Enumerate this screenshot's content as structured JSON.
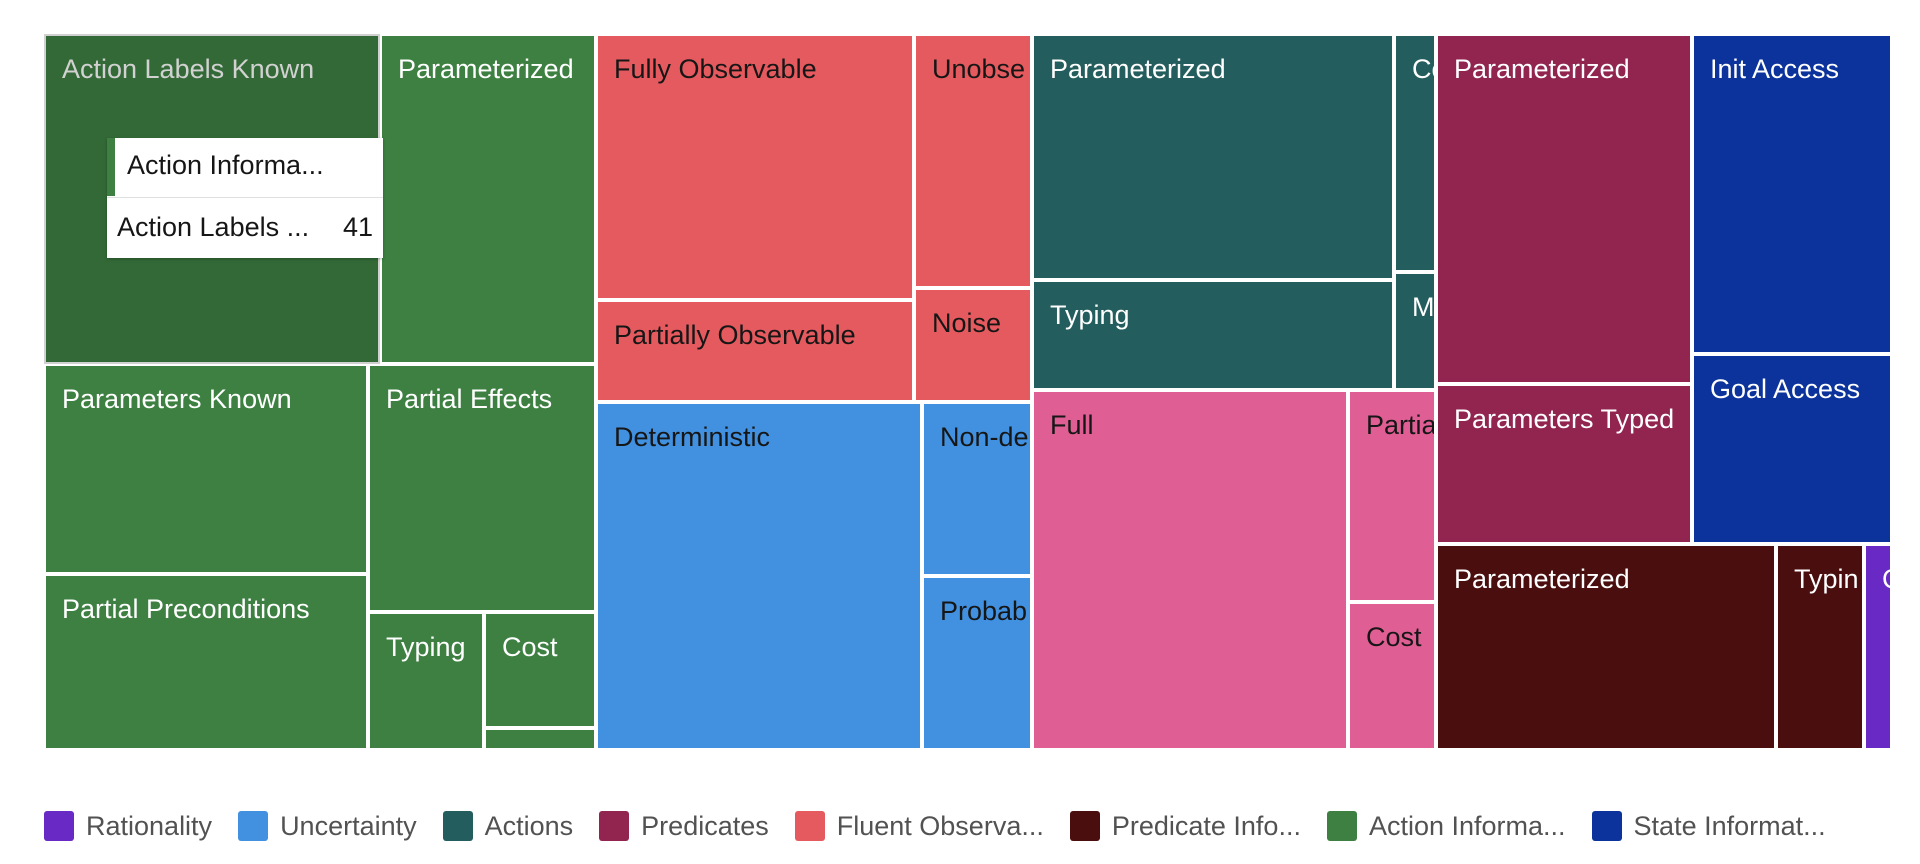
{
  "chart_data": {
    "type": "treemap",
    "colors": {
      "Rationality": "#6929c4",
      "Uncertainty": "#4191e0",
      "Actions": "#245d5d",
      "Predicates": "#912550",
      "Fluent Observability": "#e55a5e",
      "Predicate Information": "#4a0e0f",
      "Action Information": "#3d8042",
      "State Information": "#0c339b",
      "Pink": "#df5e94"
    },
    "groups": [
      {
        "name": "Action Information",
        "legend_label": "Action Informa...",
        "color_key": "Action Information",
        "children": [
          {
            "name": "Action Labels Known",
            "value": 41,
            "highlight": true
          },
          {
            "name": "Parameterized",
            "value": 22
          },
          {
            "name": "Parameters Known",
            "value": 21
          },
          {
            "name": "Partial Effects",
            "value": 17
          },
          {
            "name": "Partial Preconditions",
            "value": 17
          },
          {
            "name": "Typing",
            "value": 6
          },
          {
            "name": "Cost",
            "value": 6
          },
          {
            "name": "",
            "value": 1
          }
        ]
      },
      {
        "name": "Fluent Observability",
        "legend_label": "Fluent Observa...",
        "color_key": "Fluent Observability",
        "children": [
          {
            "name": "Fully Observable",
            "value": 22
          },
          {
            "name": "Unobse",
            "value": 8
          },
          {
            "name": "Partially Observable",
            "value": 8
          },
          {
            "name": "Noise",
            "value": 4
          }
        ]
      },
      {
        "name": "Uncertainty",
        "legend_label": "Uncertainty",
        "color_key": "Uncertainty",
        "children": [
          {
            "name": "Deterministic",
            "value": 45
          },
          {
            "name": "Non-de",
            "value": 8
          },
          {
            "name": "Probab",
            "value": 8
          }
        ]
      },
      {
        "name": "Actions",
        "legend_label": "Actions",
        "color_key": "Actions",
        "children": [
          {
            "name": "Parameterized",
            "value": 21
          },
          {
            "name": "Typing",
            "value": 10
          },
          {
            "name": "Co",
            "value": 2
          },
          {
            "name": "Ma",
            "value": 1
          }
        ]
      },
      {
        "name": "Pink",
        "legend_label": "",
        "color_key": "Pink",
        "children": [
          {
            "name": "Full",
            "value": 27
          },
          {
            "name": "Partia",
            "value": 4
          },
          {
            "name": "Cost",
            "value": 3
          }
        ]
      },
      {
        "name": "Predicates",
        "legend_label": "Predicates",
        "color_key": "Predicates",
        "children": [
          {
            "name": "Parameterized",
            "value": 21
          },
          {
            "name": "Parameters Typed",
            "value": 10
          }
        ]
      },
      {
        "name": "State Information",
        "legend_label": "State Informat...",
        "color_key": "State Information",
        "children": [
          {
            "name": "Init Access",
            "value": 15
          },
          {
            "name": "Goal Access",
            "value": 8
          }
        ]
      },
      {
        "name": "Predicate Information",
        "legend_label": "Predicate Info...",
        "color_key": "Predicate Information",
        "children": [
          {
            "name": "Parameterized",
            "value": 14
          },
          {
            "name": "Typin",
            "value": 4
          }
        ]
      },
      {
        "name": "Rationality",
        "legend_label": "Rationality",
        "color_key": "Rationality",
        "children": [
          {
            "name": "C",
            "value": 1
          }
        ]
      }
    ],
    "legend": [
      {
        "label": "Rationality",
        "color_key": "Rationality"
      },
      {
        "label": "Uncertainty",
        "color_key": "Uncertainty"
      },
      {
        "label": "Actions",
        "color_key": "Actions"
      },
      {
        "label": "Predicates",
        "color_key": "Predicates"
      },
      {
        "label": "Fluent Observa...",
        "color_key": "Fluent Observability"
      },
      {
        "label": "Predicate Info...",
        "color_key": "Predicate Information"
      },
      {
        "label": "Action Informa...",
        "color_key": "Action Information"
      },
      {
        "label": "State Informat...",
        "color_key": "State Information"
      }
    ],
    "tooltip": {
      "group": "Action Informa...",
      "name": "Action Labels ...",
      "value": "41",
      "color_key": "Action Information"
    },
    "dark_text_groups": [
      "Fluent Observability",
      "Uncertainty",
      "Pink"
    ]
  }
}
